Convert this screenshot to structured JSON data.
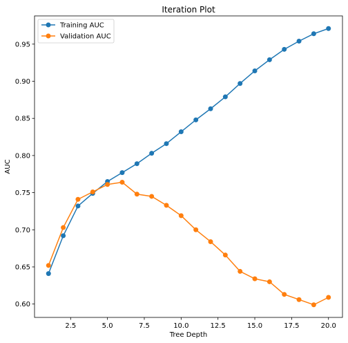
{
  "chart_data": {
    "type": "line",
    "title": "Iteration Plot",
    "xlabel": "Tree Depth",
    "ylabel": "AUC",
    "xlim": [
      0.05,
      20.95
    ],
    "ylim": [
      0.582,
      0.988
    ],
    "xticks": [
      2.5,
      5.0,
      7.5,
      10.0,
      12.5,
      15.0,
      17.5,
      20.0
    ],
    "xtick_labels": [
      "2.5",
      "5.0",
      "7.5",
      "10.0",
      "12.5",
      "15.0",
      "17.5",
      "20.0"
    ],
    "yticks": [
      0.6,
      0.65,
      0.7,
      0.75,
      0.8,
      0.85,
      0.9,
      0.95
    ],
    "ytick_labels": [
      "0.60",
      "0.65",
      "0.70",
      "0.75",
      "0.80",
      "0.85",
      "0.90",
      "0.95"
    ],
    "grid": false,
    "legend_position": "top-left",
    "x": [
      1,
      2,
      3,
      4,
      5,
      6,
      7,
      8,
      9,
      10,
      11,
      12,
      13,
      14,
      15,
      16,
      17,
      18,
      19,
      20
    ],
    "series": [
      {
        "name": "Training AUC",
        "color": "#1f77b4",
        "values": [
          0.641,
          0.692,
          0.732,
          0.749,
          0.765,
          0.777,
          0.789,
          0.803,
          0.816,
          0.832,
          0.848,
          0.863,
          0.879,
          0.897,
          0.914,
          0.929,
          0.943,
          0.954,
          0.964,
          0.971
        ]
      },
      {
        "name": "Validation AUC",
        "color": "#ff7f0e",
        "values": [
          0.652,
          0.703,
          0.741,
          0.751,
          0.761,
          0.764,
          0.748,
          0.745,
          0.733,
          0.719,
          0.7,
          0.684,
          0.666,
          0.644,
          0.634,
          0.63,
          0.613,
          0.606,
          0.599,
          0.609
        ]
      }
    ]
  }
}
